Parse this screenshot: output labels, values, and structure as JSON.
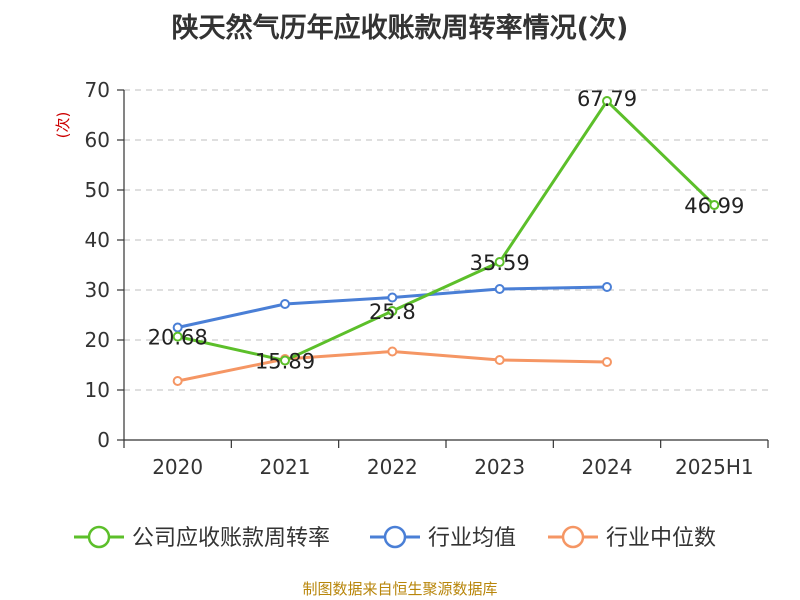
{
  "chart_data": {
    "type": "line",
    "title": "陕天然气历年应收账款周转率情况(次)",
    "ylabel": "(次)",
    "categories": [
      "2020",
      "2021",
      "2022",
      "2023",
      "2024",
      "2025H1"
    ],
    "ylim": [
      0,
      70
    ],
    "yticks": [
      0,
      10,
      20,
      30,
      40,
      50,
      60,
      70
    ],
    "grid": true,
    "legend_position": "bottom",
    "series": [
      {
        "name": "公司应收账款周转率",
        "color": "#5cbf2a",
        "values": [
          20.68,
          15.89,
          25.8,
          35.59,
          67.79,
          46.99
        ],
        "labels": [
          "20.68",
          "15.89",
          "25.8",
          "35.59",
          "67.79",
          "46.99"
        ]
      },
      {
        "name": "行业均值",
        "color": "#4a7fd6",
        "values": [
          22.5,
          27.2,
          28.5,
          30.2,
          30.6,
          null
        ]
      },
      {
        "name": "行业中位数",
        "color": "#f59664",
        "values": [
          11.8,
          16.2,
          17.7,
          16.0,
          15.6,
          null
        ]
      }
    ]
  },
  "source": "制图数据来自恒生聚源数据库"
}
